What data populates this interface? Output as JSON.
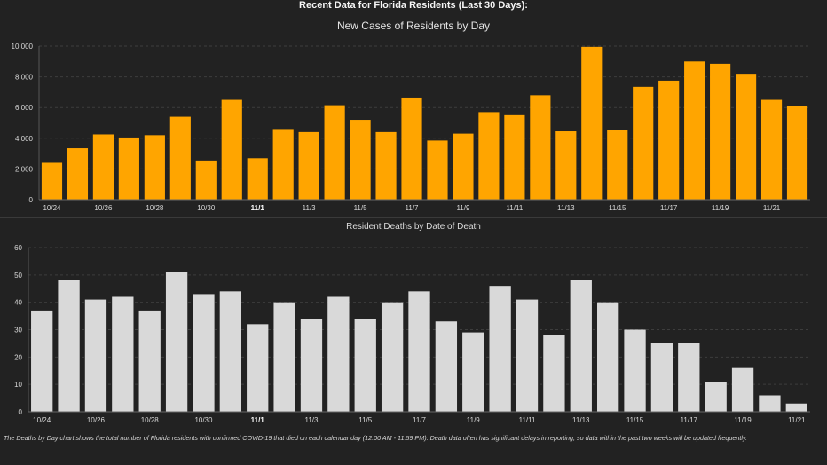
{
  "page_title": "Recent Data for Florida Residents (Last 30 Days):",
  "footnote": "The Deaths by Day chart shows the total number of Florida residents with confirmed COVID-19 that died on each calendar day (12:00 AM - 11:59 PM). Death data often has significant delays in reporting, so data within the past two weeks will be updated frequently.",
  "chart_data": [
    {
      "type": "bar",
      "title": "New Cases of Residents by Day",
      "color": "#FFA500",
      "ylim": [
        0,
        10000
      ],
      "yticks": [
        0,
        2000,
        4000,
        6000,
        8000,
        10000
      ],
      "ytick_labels": [
        "0",
        "2,000",
        "4,000",
        "6,000",
        "8,000",
        "10,000"
      ],
      "grid": true,
      "categories": [
        "10/24",
        "10/25",
        "10/26",
        "10/27",
        "10/28",
        "10/29",
        "10/30",
        "10/31",
        "11/1",
        "11/2",
        "11/3",
        "11/4",
        "11/5",
        "11/6",
        "11/7",
        "11/8",
        "11/9",
        "11/10",
        "11/11",
        "11/12",
        "11/13",
        "11/14",
        "11/15",
        "11/16",
        "11/17",
        "11/18",
        "11/19",
        "11/20",
        "11/21",
        "11/22"
      ],
      "values": [
        2400,
        3350,
        4250,
        4050,
        4200,
        5400,
        2550,
        6500,
        2700,
        4600,
        4400,
        6150,
        5200,
        4400,
        6650,
        3850,
        4300,
        5700,
        5500,
        6800,
        4450,
        9950,
        4550,
        7350,
        7750,
        9000,
        8850,
        8200,
        6500,
        6100
      ],
      "tick_labels": [
        {
          "label": "10/24",
          "bold": false
        },
        {
          "label": "",
          "bold": false
        },
        {
          "label": "10/26",
          "bold": false
        },
        {
          "label": "",
          "bold": false
        },
        {
          "label": "10/28",
          "bold": false
        },
        {
          "label": "",
          "bold": false
        },
        {
          "label": "10/30",
          "bold": false
        },
        {
          "label": "",
          "bold": false
        },
        {
          "label": "11/1",
          "bold": true
        },
        {
          "label": "",
          "bold": false
        },
        {
          "label": "11/3",
          "bold": false
        },
        {
          "label": "",
          "bold": false
        },
        {
          "label": "11/5",
          "bold": false
        },
        {
          "label": "",
          "bold": false
        },
        {
          "label": "11/7",
          "bold": false
        },
        {
          "label": "",
          "bold": false
        },
        {
          "label": "11/9",
          "bold": false
        },
        {
          "label": "",
          "bold": false
        },
        {
          "label": "11/11",
          "bold": false
        },
        {
          "label": "",
          "bold": false
        },
        {
          "label": "11/13",
          "bold": false
        },
        {
          "label": "",
          "bold": false
        },
        {
          "label": "11/15",
          "bold": false
        },
        {
          "label": "",
          "bold": false
        },
        {
          "label": "11/17",
          "bold": false
        },
        {
          "label": "",
          "bold": false
        },
        {
          "label": "11/19",
          "bold": false
        },
        {
          "label": "",
          "bold": false
        },
        {
          "label": "11/21",
          "bold": false
        },
        {
          "label": "",
          "bold": false
        }
      ]
    },
    {
      "type": "bar",
      "title": "Resident Deaths by Date of Death",
      "color": "#D9D9D9",
      "ylim": [
        0,
        60
      ],
      "yticks": [
        0,
        10,
        20,
        30,
        40,
        50,
        60
      ],
      "ytick_labels": [
        "0",
        "10",
        "20",
        "30",
        "40",
        "50",
        "60"
      ],
      "grid": true,
      "categories": [
        "10/24",
        "10/25",
        "10/26",
        "10/27",
        "10/28",
        "10/29",
        "10/30",
        "10/31",
        "11/1",
        "11/2",
        "11/3",
        "11/4",
        "11/5",
        "11/6",
        "11/7",
        "11/8",
        "11/9",
        "11/10",
        "11/11",
        "11/12",
        "11/13",
        "11/14",
        "11/15",
        "11/16",
        "11/17",
        "11/18",
        "11/19",
        "11/20",
        "11/21"
      ],
      "values": [
        37,
        48,
        41,
        42,
        37,
        51,
        43,
        44,
        32,
        40,
        34,
        42,
        34,
        40,
        44,
        33,
        29,
        46,
        41,
        28,
        48,
        40,
        30,
        25,
        25,
        11,
        16,
        6,
        3
      ],
      "tick_labels": [
        {
          "label": "10/24",
          "bold": false
        },
        {
          "label": "",
          "bold": false
        },
        {
          "label": "10/26",
          "bold": false
        },
        {
          "label": "",
          "bold": false
        },
        {
          "label": "10/28",
          "bold": false
        },
        {
          "label": "",
          "bold": false
        },
        {
          "label": "10/30",
          "bold": false
        },
        {
          "label": "",
          "bold": false
        },
        {
          "label": "11/1",
          "bold": true
        },
        {
          "label": "",
          "bold": false
        },
        {
          "label": "11/3",
          "bold": false
        },
        {
          "label": "",
          "bold": false
        },
        {
          "label": "11/5",
          "bold": false
        },
        {
          "label": "",
          "bold": false
        },
        {
          "label": "11/7",
          "bold": false
        },
        {
          "label": "",
          "bold": false
        },
        {
          "label": "11/9",
          "bold": false
        },
        {
          "label": "",
          "bold": false
        },
        {
          "label": "11/11",
          "bold": false
        },
        {
          "label": "",
          "bold": false
        },
        {
          "label": "11/13",
          "bold": false
        },
        {
          "label": "",
          "bold": false
        },
        {
          "label": "11/15",
          "bold": false
        },
        {
          "label": "",
          "bold": false
        },
        {
          "label": "11/17",
          "bold": false
        },
        {
          "label": "",
          "bold": false
        },
        {
          "label": "11/19",
          "bold": false
        },
        {
          "label": "",
          "bold": false
        },
        {
          "label": "11/21",
          "bold": false
        }
      ]
    }
  ]
}
